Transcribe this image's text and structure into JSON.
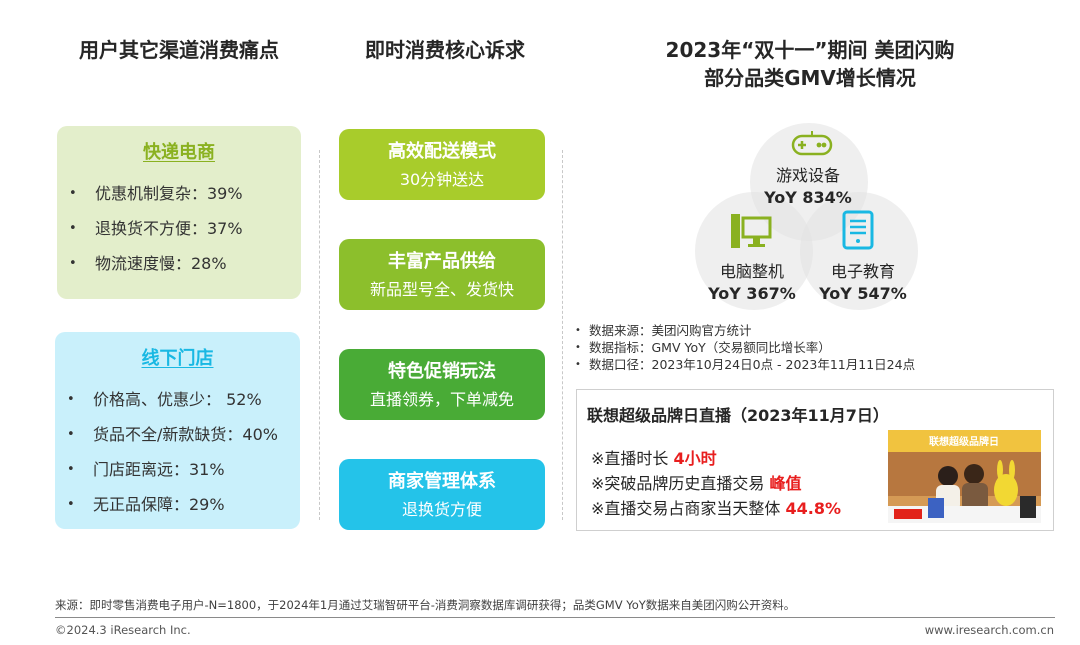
{
  "columns": {
    "pain_title": "用户其它渠道消费痛点",
    "core_title": "即时消费核心诉求",
    "gmv_title_line1": "2023年“双十一”期间 美团闪购",
    "gmv_title_line2": "部分品类GMV增长情况"
  },
  "pain_points": {
    "ecommerce": {
      "title": "快递电商",
      "items": [
        "优惠机制复杂：39%",
        "退换货不方便：37%",
        "物流速度慢：28%"
      ]
    },
    "offline": {
      "title": "线下门店",
      "items": [
        "价格高、优惠少： 52%",
        "货品不全/新款缺货：40%",
        "门店距离远：31%",
        "无正品保障：29%"
      ]
    }
  },
  "needs": [
    {
      "title": "高效配送模式",
      "sub": "30分钟送达"
    },
    {
      "title": "丰富产品供给",
      "sub": "新品型号全、发货快"
    },
    {
      "title": "特色促销玩法",
      "sub": "直播领券，下单减免"
    },
    {
      "title": "商家管理体系",
      "sub": "退换货方便"
    }
  ],
  "gmv": {
    "categories": [
      {
        "name": "游戏设备",
        "yoy": "YoY 834%",
        "icon": "gamepad-icon"
      },
      {
        "name": "电脑整机",
        "yoy": "YoY 367%",
        "icon": "computer-icon"
      },
      {
        "name": "电子教育",
        "yoy": "YoY 547%",
        "icon": "tablet-icon"
      }
    ],
    "notes": [
      "数据来源：美团闪购官方统计",
      "数据指标：GMV YoY（交易额同比增长率）",
      "数据口径：2023年10月24日0点 - 2023年11月11日24点"
    ]
  },
  "live": {
    "title": "联想超级品牌日直播（2023年11月7日）",
    "line1_text": "※直播时长 ",
    "line1_value": "4小时",
    "line2_text": "※突破品牌历史直播交易 ",
    "line2_value": "峰值",
    "line3_text": "※直播交易占商家当天整体 ",
    "line3_value": "44.8%",
    "photo_banner": "联想超级品牌日"
  },
  "footer": {
    "source": "来源：即时零售消费电子用户-N=1800，于2024年1月通过艾瑞智研平台-消费洞察数据库调研获得；品类GMV YoY数据来自美团闪购公开资料。",
    "copyright": "©2024.3 iResearch Inc.",
    "website": "www.iresearch.com.cn"
  },
  "colors": {
    "green_panel": "#e3eecb",
    "blue_panel": "#c9f0fb",
    "highlight": "#e81e1e"
  }
}
